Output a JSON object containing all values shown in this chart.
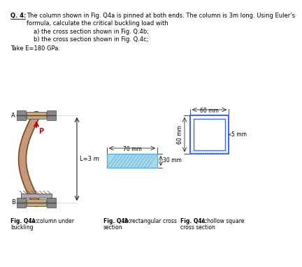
{
  "main_text_line1": "The column shown in Fig. Q4a is pinned at both ends. The column is 3m long. Using Euler’s",
  "main_text_line2": "formula, calculate the critical buckling load with",
  "sub_a": "a) the cross section shown in Fig. Q.4b;",
  "sub_b": "b) the cross section shown in Fig. Q.4c;",
  "take_e": "Take E=180 GPa.",
  "fig_a_label1": "Fig. Q4a:",
  "fig_a_label2": " A column under",
  "fig_a_label3": "buckling",
  "fig_b_label1": "Fig. Q4b:",
  "fig_b_label2": " A rectangular cross",
  "fig_b_label3": "section",
  "fig_c_label1": "Fig. Q4c:",
  "fig_c_label2": " A hollow square",
  "fig_c_label3": "cross section",
  "L_label": "L=3 m",
  "dim_30mm": "30 mm",
  "dim_70mm": "70 mm",
  "dim_60mm_v": "60 mm",
  "dim_60mm_h": "60 mm",
  "dim_5mm": "5 mm",
  "P_label": "P",
  "A_label": "A",
  "B_label": "B",
  "bg_color": "#ffffff",
  "text_color": "#000000",
  "rect_fill_color": "#a8d8ea",
  "hatch_color": "#5aafe0",
  "column_color": "#c8987a",
  "column_dark": "#7a4a2a",
  "square_border_color": "#4169e1",
  "arrow_color": "#cc0000",
  "support_gray": "#888888",
  "support_dark": "#444444",
  "pin_beige": "#c8a87a",
  "font_size_main": 6.0,
  "font_size_label": 5.5,
  "font_size_dim": 5.5
}
